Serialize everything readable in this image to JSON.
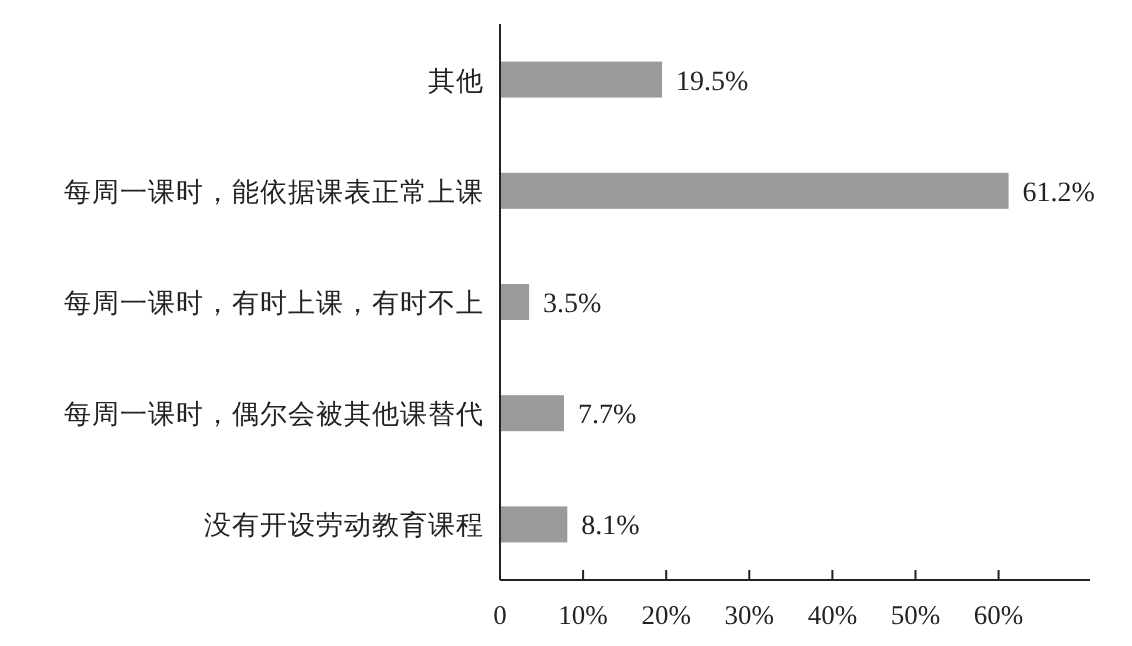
{
  "chart_data": {
    "type": "bar",
    "orientation": "horizontal",
    "categories": [
      "其他",
      "每周一课时，能依据课表正常上课",
      "每周一课时，有时上课，有时不上",
      "每周一课时，偶尔会被其他课替代",
      "没有开设劳动教育课程"
    ],
    "values": [
      19.5,
      61.2,
      3.5,
      7.7,
      8.1
    ],
    "value_labels": [
      "19.5%",
      "61.2%",
      "3.5%",
      "7.7%",
      "8.1%"
    ],
    "color": "#9a9a9a",
    "xlim": [
      0,
      71
    ],
    "xticks": [
      0,
      {
        "value": 10,
        "label": "10%"
      },
      {
        "value": 20,
        "label": "20%"
      },
      {
        "value": 30,
        "label": "30%"
      },
      {
        "value": 40,
        "label": "40%"
      },
      {
        "value": 50,
        "label": "50%"
      },
      {
        "value": 60,
        "label": "60%"
      }
    ],
    "grid": false
  }
}
